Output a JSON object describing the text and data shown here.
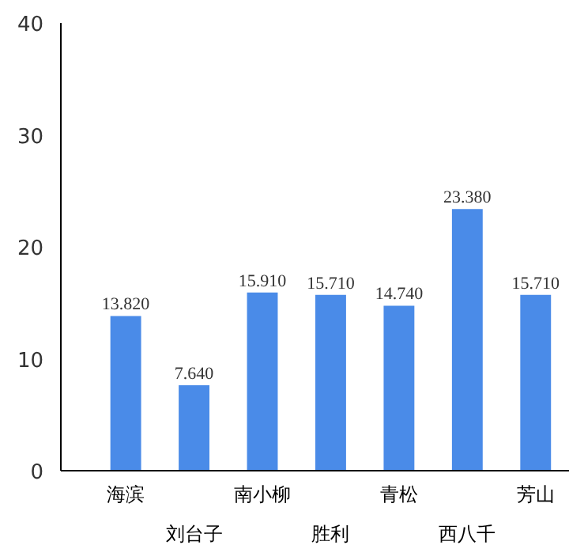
{
  "chart_data": {
    "type": "bar",
    "categories": [
      "海滨",
      "刘台子",
      "南小柳",
      "胜利",
      "青松",
      "西八千",
      "芳山"
    ],
    "values": [
      13.82,
      7.64,
      15.91,
      15.71,
      14.74,
      23.38,
      15.71
    ],
    "value_labels": [
      "13.820",
      "7.640",
      "15.910",
      "15.710",
      "14.740",
      "23.380",
      "15.710"
    ],
    "color": "#4a8be8",
    "ylim": [
      0,
      40
    ],
    "yticks": [
      0,
      10,
      20,
      30,
      40
    ],
    "grid": false
  }
}
